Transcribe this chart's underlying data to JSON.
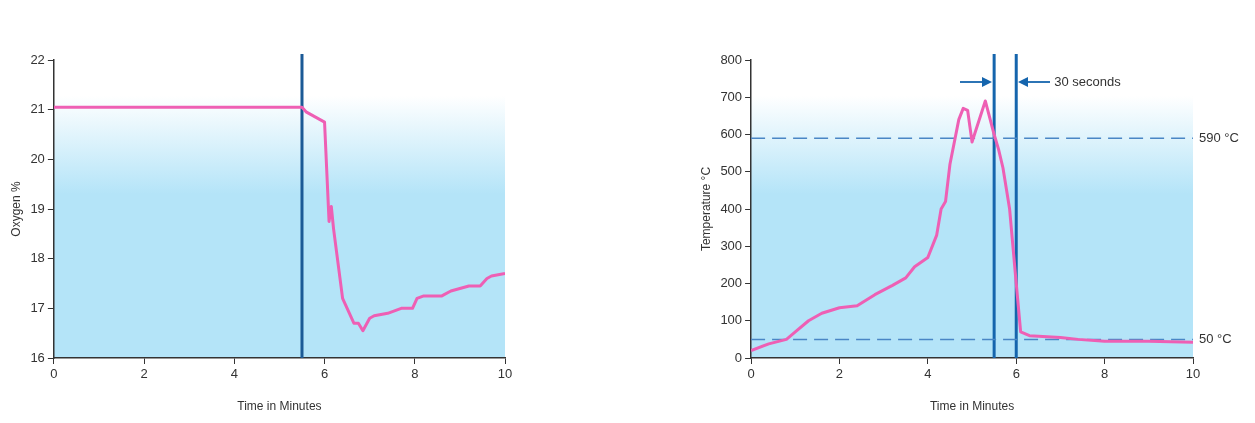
{
  "chart_data": [
    {
      "type": "line",
      "ylabel": "Oxygen %",
      "xlabel": "Time in Minutes",
      "xlim": [
        0,
        10
      ],
      "xticks": [
        0,
        2,
        4,
        6,
        8,
        10
      ],
      "ylim": [
        16,
        22
      ],
      "yticks": [
        16,
        17,
        18,
        19,
        20,
        21,
        22
      ],
      "grid": false,
      "legend": false,
      "marker": "none",
      "line_style": "solid",
      "series": [
        {
          "color": "#ee5fb4",
          "x": [
            0,
            5.5,
            5.6,
            6.0,
            6.1,
            6.15,
            6.2,
            6.4,
            6.65,
            6.75,
            6.85,
            7.0,
            7.1,
            7.4,
            7.7,
            7.95,
            8.05,
            8.2,
            8.6,
            8.8,
            9.0,
            9.2,
            9.45,
            9.6,
            9.7,
            10
          ],
          "values": [
            21.05,
            21.05,
            20.95,
            20.75,
            18.75,
            19.05,
            18.6,
            17.2,
            16.7,
            16.7,
            16.55,
            16.8,
            16.85,
            16.9,
            17.0,
            17.0,
            17.2,
            17.25,
            17.25,
            17.35,
            17.4,
            17.45,
            17.45,
            17.6,
            17.65,
            17.7
          ]
        }
      ],
      "ref_lines": [
        {
          "axis": "x",
          "value": 5.5,
          "label": null,
          "color": "#1b5a96",
          "line_style": "solid"
        }
      ]
    },
    {
      "type": "line",
      "ylabel": "Temperature °C",
      "xlabel": "Time in Minutes",
      "xlim": [
        0,
        10
      ],
      "xticks": [
        0,
        2,
        4,
        6,
        8,
        10
      ],
      "ylim": [
        0,
        800
      ],
      "yticks": [
        0,
        100,
        200,
        300,
        400,
        500,
        600,
        700,
        800
      ],
      "grid": false,
      "legend": false,
      "marker": "none",
      "line_style": "solid",
      "series": [
        {
          "color": "#ee5fb4",
          "x": [
            0,
            0.4,
            0.8,
            1.0,
            1.3,
            1.6,
            2.0,
            2.4,
            2.8,
            3.2,
            3.5,
            3.7,
            4.0,
            4.2,
            4.3,
            4.4,
            4.5,
            4.7,
            4.8,
            4.9,
            5.0,
            5.3,
            5.5,
            5.6,
            5.7,
            5.85,
            6.0,
            6.1,
            6.3,
            7.0,
            7.4,
            8,
            9,
            10
          ],
          "values": [
            20,
            38,
            50,
            70,
            100,
            120,
            135,
            140,
            170,
            195,
            215,
            245,
            270,
            330,
            400,
            420,
            520,
            640,
            670,
            665,
            580,
            690,
            600,
            560,
            510,
            400,
            200,
            70,
            60,
            55,
            50,
            45,
            45,
            42
          ]
        }
      ],
      "ref_lines": [
        {
          "axis": "x",
          "value": 5.5,
          "label": null,
          "color": "#1565ad",
          "line_style": "solid"
        },
        {
          "axis": "x",
          "value": 6.0,
          "label": null,
          "color": "#1565ad",
          "line_style": "solid"
        },
        {
          "axis": "y",
          "value": 590,
          "label": "590 °C",
          "color": "#4a86c5",
          "line_style": "dashed"
        },
        {
          "axis": "y",
          "value": 50,
          "label": "50 °C",
          "color": "#4a86c5",
          "line_style": "dashed"
        }
      ],
      "annotations": [
        {
          "text": "30 seconds",
          "x": 6.0,
          "y": 740
        }
      ]
    }
  ]
}
